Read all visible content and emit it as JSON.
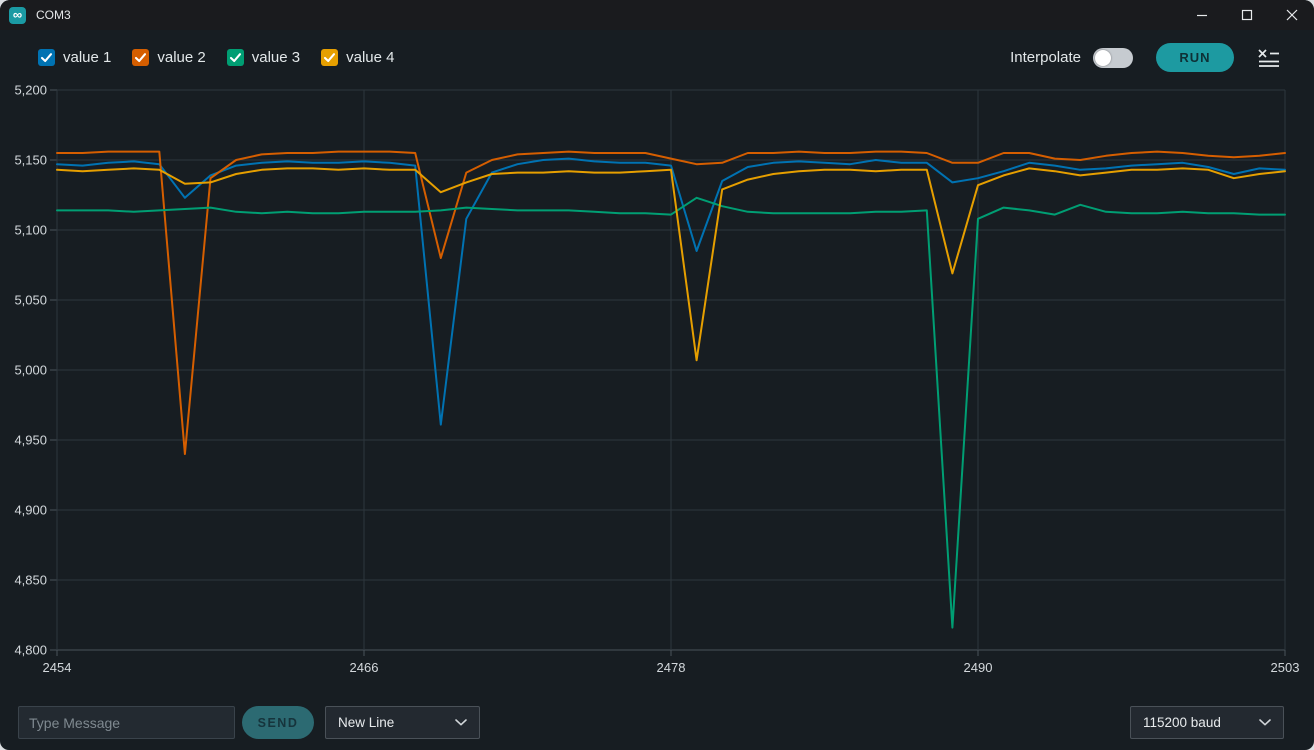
{
  "titlebar": {
    "title": "COM3"
  },
  "icons": {
    "app_icon": "infinity",
    "minimize_icon": "horizontal-line",
    "maximize_icon": "square-outline",
    "close_icon": "x-cross",
    "clear_plot_icon": "x-with-list-lines",
    "chevron_down_icon": "chevron-down",
    "checkbox_check_icon": "checkmark"
  },
  "controls": {
    "interpolate_label": "Interpolate",
    "interpolate_on": false,
    "run_label": "RUN"
  },
  "footer": {
    "message_placeholder": "Type Message",
    "send_label": "SEND",
    "line_ending_value": "New Line",
    "baud_value": "115200 baud"
  },
  "colors": {
    "accent_teal": "#1d9aa1",
    "send_teal": "#2c6a72",
    "grid": "#2e373d",
    "axis": "#4a525a",
    "tick_text": "#d3d8dc"
  },
  "chart_data": {
    "type": "line",
    "x_first": 2454,
    "x_last": 2502,
    "xlim": [
      2454,
      2503
    ],
    "ylim": [
      4800,
      5200
    ],
    "grid": true,
    "legend_position": "top-left",
    "x_ticks": [
      2454,
      2466,
      2478,
      2490,
      2503
    ],
    "x_tick_labels": [
      "2454",
      "2466",
      "2478",
      "2490",
      "2503"
    ],
    "y_ticks": [
      5200,
      5150,
      5100,
      5050,
      5000,
      4950,
      4900,
      4850,
      4800
    ],
    "y_tick_labels": [
      "5,200",
      "5,150",
      "5,100",
      "5,050",
      "5,000",
      "4,950",
      "4,900",
      "4,850",
      "4,800"
    ],
    "series": [
      {
        "name": "value 1",
        "color": "#0072B2",
        "checked": true,
        "values": [
          5147,
          5146,
          5148,
          5149,
          5147,
          5123,
          5139,
          5146,
          5148,
          5149,
          5148,
          5148,
          5149,
          5148,
          5146,
          4961,
          5108,
          5141,
          5147,
          5150,
          5151,
          5149,
          5148,
          5148,
          5146,
          5085,
          5135,
          5145,
          5148,
          5149,
          5148,
          5147,
          5150,
          5148,
          5148,
          5134,
          5137,
          5142,
          5148,
          5146,
          5143,
          5144,
          5146,
          5147,
          5148,
          5145,
          5140,
          5144,
          5143
        ]
      },
      {
        "name": "value 2",
        "color": "#D55E00",
        "checked": true,
        "values": [
          5155,
          5155,
          5156,
          5156,
          5156,
          4940,
          5137,
          5150,
          5154,
          5155,
          5155,
          5156,
          5156,
          5156,
          5155,
          5080,
          5141,
          5150,
          5154,
          5155,
          5156,
          5155,
          5155,
          5155,
          5151,
          5147,
          5148,
          5155,
          5155,
          5156,
          5155,
          5155,
          5156,
          5156,
          5155,
          5148,
          5148,
          5155,
          5155,
          5151,
          5150,
          5153,
          5155,
          5156,
          5155,
          5153,
          5152,
          5153,
          5155
        ]
      },
      {
        "name": "value 3",
        "color": "#009E73",
        "checked": true,
        "values": [
          5114,
          5114,
          5114,
          5113,
          5114,
          5115,
          5116,
          5113,
          5112,
          5113,
          5112,
          5112,
          5113,
          5113,
          5113,
          5114,
          5116,
          5115,
          5114,
          5114,
          5114,
          5113,
          5112,
          5112,
          5111,
          5123,
          5117,
          5113,
          5112,
          5112,
          5112,
          5112,
          5113,
          5113,
          5114,
          4816,
          5108,
          5116,
          5114,
          5111,
          5118,
          5113,
          5112,
          5112,
          5113,
          5112,
          5112,
          5111,
          5111
        ]
      },
      {
        "name": "value 4",
        "color": "#E69F00",
        "checked": true,
        "values": [
          5143,
          5142,
          5143,
          5144,
          5143,
          5133,
          5134,
          5140,
          5143,
          5144,
          5144,
          5143,
          5144,
          5143,
          5143,
          5127,
          5134,
          5140,
          5141,
          5141,
          5142,
          5141,
          5141,
          5142,
          5143,
          5007,
          5129,
          5136,
          5140,
          5142,
          5143,
          5143,
          5142,
          5143,
          5143,
          5069,
          5132,
          5139,
          5144,
          5142,
          5139,
          5141,
          5143,
          5143,
          5144,
          5143,
          5137,
          5140,
          5142
        ]
      }
    ]
  }
}
